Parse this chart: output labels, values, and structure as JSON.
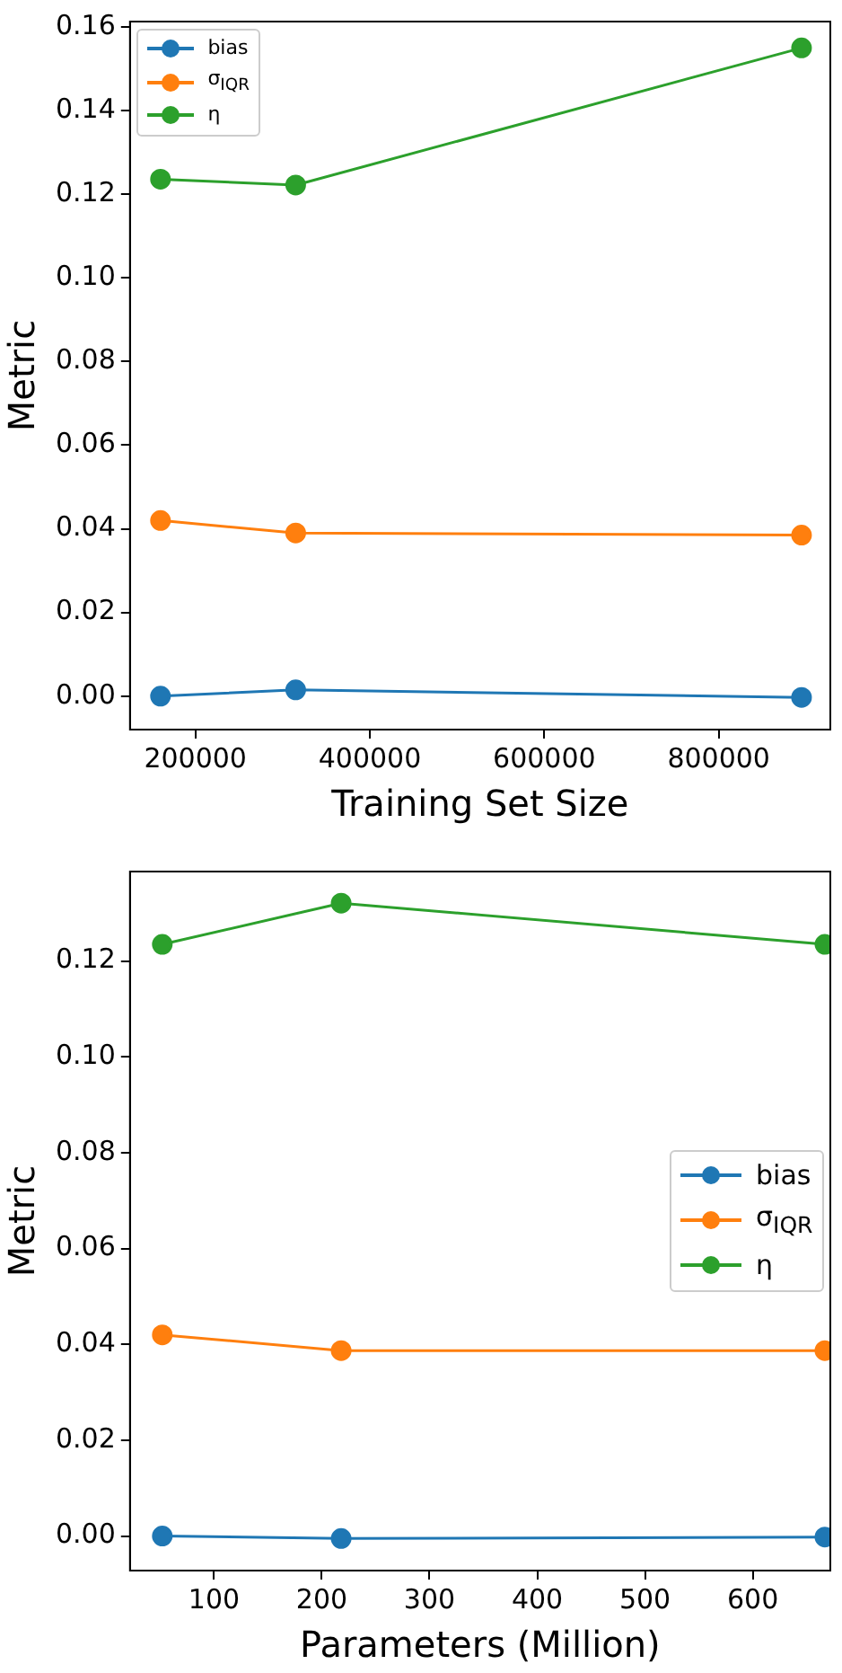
{
  "chart_data": [
    {
      "type": "line",
      "xlabel": "Training Set Size",
      "ylabel": "Metric",
      "x": [
        160000,
        315000,
        895000
      ],
      "series": [
        {
          "name": "bias",
          "color": "#1f77b4",
          "values": [
            0.0,
            0.0015,
            -0.0003
          ]
        },
        {
          "name": "σ$_{IQR}$",
          "color": "#ff7f0e",
          "values": [
            0.042,
            0.039,
            0.0385
          ]
        },
        {
          "name": "η",
          "color": "#2ca02c",
          "values": [
            0.1236,
            0.1222,
            0.155
          ]
        }
      ],
      "xlim": [
        125000,
        928000
      ],
      "xticks": [
        200000,
        400000,
        600000,
        800000
      ],
      "ylim": [
        -0.008,
        0.1613
      ],
      "yticks": [
        {
          "value": 0,
          "label": "0.00"
        },
        {
          "value": 0.02,
          "label": "0.02"
        },
        {
          "value": 0.04,
          "label": "0.04"
        },
        {
          "value": 0.06,
          "label": "0.06"
        },
        {
          "value": 0.08,
          "label": "0.08"
        },
        {
          "value": 0.1,
          "label": "0.10"
        },
        {
          "value": 0.12,
          "label": "0.12"
        },
        {
          "value": 0.14,
          "label": "0.14"
        },
        {
          "value": 0.16,
          "label": "0.16"
        }
      ],
      "grid": false,
      "legend": "top left",
      "marker": "circle",
      "line_style": "solid"
    },
    {
      "type": "line",
      "xlabel": "Parameters (Million)",
      "ylabel": "Metric",
      "x": [
        52,
        218,
        667
      ],
      "series": [
        {
          "name": "bias",
          "color": "#1f77b4",
          "values": [
            0.0,
            -0.0005,
            -0.0002
          ]
        },
        {
          "name": "σ$_{IQR}$",
          "color": "#ff7f0e",
          "values": [
            0.042,
            0.0387,
            0.0387
          ]
        },
        {
          "name": "η",
          "color": "#2ca02c",
          "values": [
            0.1235,
            0.1321,
            0.1235
          ]
        }
      ],
      "xlim": [
        22,
        672
      ],
      "xticks": [
        100,
        200,
        300,
        400,
        500,
        600
      ],
      "ylim": [
        -0.0072,
        0.1387
      ],
      "yticks": [
        {
          "value": 0,
          "label": "0.00"
        },
        {
          "value": 0.02,
          "label": "0.02"
        },
        {
          "value": 0.04,
          "label": "0.04"
        },
        {
          "value": 0.06,
          "label": "0.06"
        },
        {
          "value": 0.08,
          "label": "0.08"
        },
        {
          "value": 0.1,
          "label": "0.10"
        },
        {
          "value": 0.12,
          "label": "0.12"
        }
      ],
      "grid": false,
      "legend": "center right",
      "marker": "circle",
      "line_style": "solid"
    }
  ]
}
